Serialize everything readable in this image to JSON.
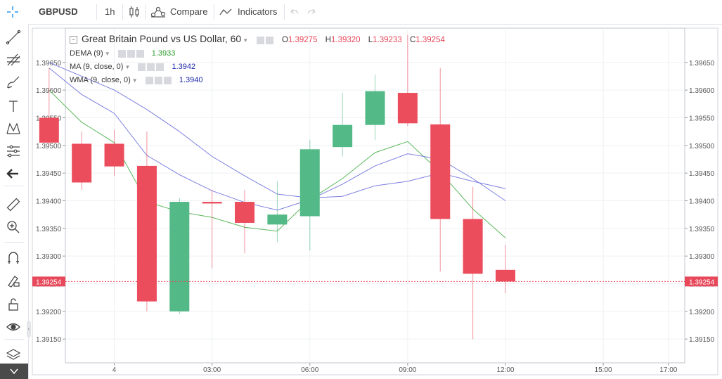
{
  "toolbar": {
    "symbol": "GBPUSD",
    "interval": "1h",
    "compare_label": "Compare",
    "indicators_label": "Indicators"
  },
  "legend": {
    "title": "Great Britain Pound vs US Dollar, 60",
    "open_label": "O",
    "open": "1.39275",
    "high_label": "H",
    "high": "1.39320",
    "low_label": "L",
    "low": "1.39233",
    "close_label": "C",
    "close": "1.39254",
    "indicators": [
      {
        "name": "DEMA (9)",
        "value": "1.3933",
        "color": "#2e9e2e"
      },
      {
        "name": "MA (9, close, 0)",
        "value": "1.3942",
        "color": "#1e2aa8"
      },
      {
        "name": "WMA (9, close, 0)",
        "value": "1.3940",
        "color": "#1e2aa8"
      }
    ]
  },
  "chart_data": {
    "type": "candlestick",
    "colors": {
      "up": "#53b987",
      "down": "#eb4d5c",
      "dema": "#5cb85c",
      "ma": "#7b7fe0",
      "wma": "#7b7fe0",
      "last_price": "#e7485a"
    },
    "ylim": [
      1.39107,
      1.39712
    ],
    "xlim": [
      -1.5,
      17.5
    ],
    "y_ticks": [
      "1.39650",
      "1.39600",
      "1.39550",
      "1.39500",
      "1.39450",
      "1.39400",
      "1.39350",
      "1.39300",
      "1.39250",
      "1.39200",
      "1.39150"
    ],
    "x_ticks": [
      {
        "x": 0,
        "label": "4"
      },
      {
        "x": 3,
        "label": "03:00"
      },
      {
        "x": 6,
        "label": "06:00"
      },
      {
        "x": 9,
        "label": "09:00"
      },
      {
        "x": 12,
        "label": "12:00"
      },
      {
        "x": 15,
        "label": "15:00"
      },
      {
        "x": 17,
        "label": "17:00"
      }
    ],
    "candles": [
      {
        "x": -2,
        "open": 1.3955,
        "high": 1.3964,
        "low": 1.395,
        "close": 1.39505
      },
      {
        "x": -1,
        "open": 1.39503,
        "high": 1.39525,
        "low": 1.3942,
        "close": 1.39433
      },
      {
        "x": 0,
        "open": 1.39503,
        "high": 1.39528,
        "low": 1.39445,
        "close": 1.39462
      },
      {
        "x": 1,
        "open": 1.39463,
        "high": 1.39525,
        "low": 1.392,
        "close": 1.39218
      },
      {
        "x": 2,
        "open": 1.392,
        "high": 1.39405,
        "low": 1.39195,
        "close": 1.39398
      },
      {
        "x": 3,
        "open": 1.39398,
        "high": 1.3942,
        "low": 1.39278,
        "close": 1.39395
      },
      {
        "x": 4,
        "open": 1.39398,
        "high": 1.3942,
        "low": 1.39305,
        "close": 1.3936
      },
      {
        "x": 5,
        "open": 1.39357,
        "high": 1.39435,
        "low": 1.39325,
        "close": 1.39375
      },
      {
        "x": 6,
        "open": 1.39372,
        "high": 1.3951,
        "low": 1.3931,
        "close": 1.39493
      },
      {
        "x": 7,
        "open": 1.39497,
        "high": 1.39595,
        "low": 1.3948,
        "close": 1.39537
      },
      {
        "x": 8,
        "open": 1.39537,
        "high": 1.39628,
        "low": 1.3951,
        "close": 1.39598
      },
      {
        "x": 9,
        "open": 1.39595,
        "high": 1.397,
        "low": 1.39535,
        "close": 1.3954
      },
      {
        "x": 10,
        "open": 1.39538,
        "high": 1.3964,
        "low": 1.39272,
        "close": 1.39367
      },
      {
        "x": 11,
        "open": 1.39367,
        "high": 1.39425,
        "low": 1.3915,
        "close": 1.39268
      },
      {
        "x": 12,
        "open": 1.39275,
        "high": 1.3932,
        "low": 1.39233,
        "close": 1.39254
      }
    ],
    "series": [
      {
        "name": "DEMA (9)",
        "x": [
          -2,
          -1,
          0,
          1,
          2,
          3,
          4,
          5,
          6,
          7,
          8,
          9,
          10,
          11,
          12
        ],
        "values": [
          1.396,
          1.39542,
          1.39505,
          1.39398,
          1.3938,
          1.3937,
          1.39352,
          1.39345,
          1.39402,
          1.3944,
          1.39487,
          1.39507,
          1.39452,
          1.39385,
          1.39333
        ]
      },
      {
        "name": "MA (9, close, 0)",
        "x": [
          -2,
          -1,
          0,
          1,
          2,
          3,
          4,
          5,
          6,
          7,
          8,
          9,
          10,
          11,
          12
        ],
        "values": [
          1.3965,
          1.39625,
          1.396,
          1.39565,
          1.39525,
          1.3948,
          1.39445,
          1.39412,
          1.39405,
          1.39408,
          1.39427,
          1.39435,
          1.3945,
          1.39435,
          1.39422
        ]
      },
      {
        "name": "WMA (9, close, 0)",
        "x": [
          -2,
          -1,
          0,
          1,
          2,
          3,
          4,
          5,
          6,
          7,
          8,
          9,
          10,
          11,
          12
        ],
        "values": [
          1.3964,
          1.39592,
          1.39558,
          1.39482,
          1.39447,
          1.39418,
          1.39397,
          1.39383,
          1.39402,
          1.3943,
          1.39463,
          1.39485,
          1.39475,
          1.3944,
          1.394
        ]
      }
    ],
    "last_price": "1.39254",
    "last_value": 1.39254
  }
}
